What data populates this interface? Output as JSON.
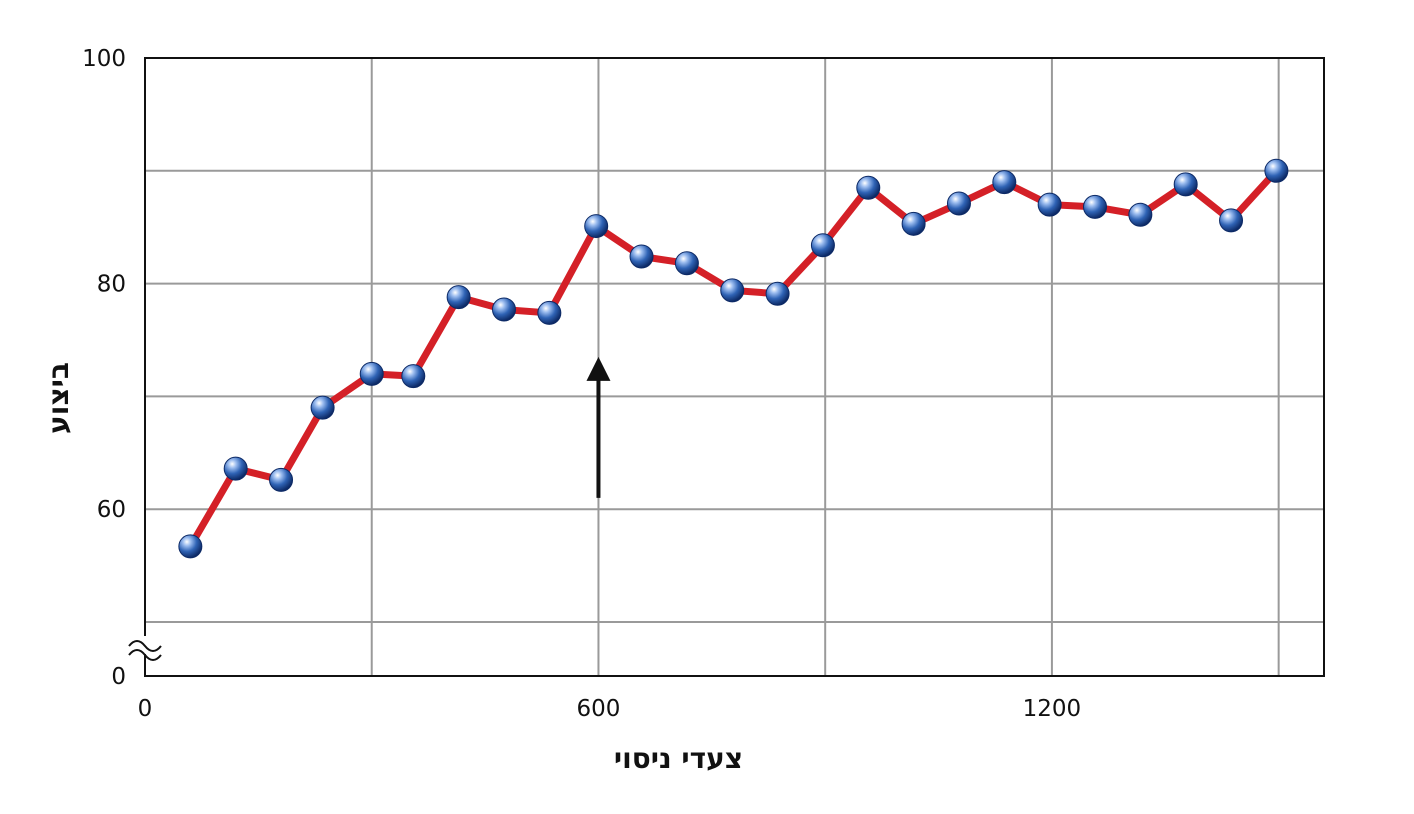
{
  "chart_data": {
    "type": "line",
    "xlabel": "צעדי ניסוי",
    "ylabel": "ביצוע",
    "xlim": [
      0,
      1560
    ],
    "ylim": [
      0,
      100
    ],
    "y_axis_break": true,
    "y_break_range": [
      0,
      55
    ],
    "x_ticks": [
      {
        "value": 0,
        "label": "0"
      },
      {
        "value": 600,
        "label": "600"
      },
      {
        "value": 1200,
        "label": "1200"
      }
    ],
    "y_ticks": [
      {
        "value": 0,
        "label": "0"
      },
      {
        "value": 60,
        "label": "60"
      },
      {
        "value": 80,
        "label": "80"
      },
      {
        "value": 100,
        "label": "100"
      }
    ],
    "x_grid": [
      300,
      600,
      900,
      1200,
      1500
    ],
    "y_grid": [
      60,
      70,
      80,
      90,
      100
    ],
    "grid": true,
    "series": [
      {
        "color": "#d42027",
        "marker_color": "#2f63b5",
        "points": [
          {
            "x": 60,
            "y": 56.7
          },
          {
            "x": 120,
            "y": 63.6
          },
          {
            "x": 180,
            "y": 62.6
          },
          {
            "x": 235,
            "y": 69.0
          },
          {
            "x": 300,
            "y": 72.0
          },
          {
            "x": 355,
            "y": 71.8
          },
          {
            "x": 415,
            "y": 78.8
          },
          {
            "x": 475,
            "y": 77.7
          },
          {
            "x": 535,
            "y": 77.4
          },
          {
            "x": 597,
            "y": 85.1
          },
          {
            "x": 657,
            "y": 82.4
          },
          {
            "x": 717,
            "y": 81.8
          },
          {
            "x": 777,
            "y": 79.4
          },
          {
            "x": 837,
            "y": 79.1
          },
          {
            "x": 897,
            "y": 83.4
          },
          {
            "x": 957,
            "y": 88.5
          },
          {
            "x": 1017,
            "y": 85.3
          },
          {
            "x": 1077,
            "y": 87.1
          },
          {
            "x": 1137,
            "y": 89.0
          },
          {
            "x": 1197,
            "y": 87.0
          },
          {
            "x": 1257,
            "y": 86.8
          },
          {
            "x": 1317,
            "y": 86.1
          },
          {
            "x": 1377,
            "y": 88.8
          },
          {
            "x": 1437,
            "y": 85.6
          },
          {
            "x": 1497,
            "y": 90.0
          }
        ]
      }
    ],
    "annotations": [
      {
        "type": "arrow",
        "x": 600,
        "y_from": 61.0,
        "y_to": 73.5,
        "color": "#111111"
      }
    ]
  }
}
